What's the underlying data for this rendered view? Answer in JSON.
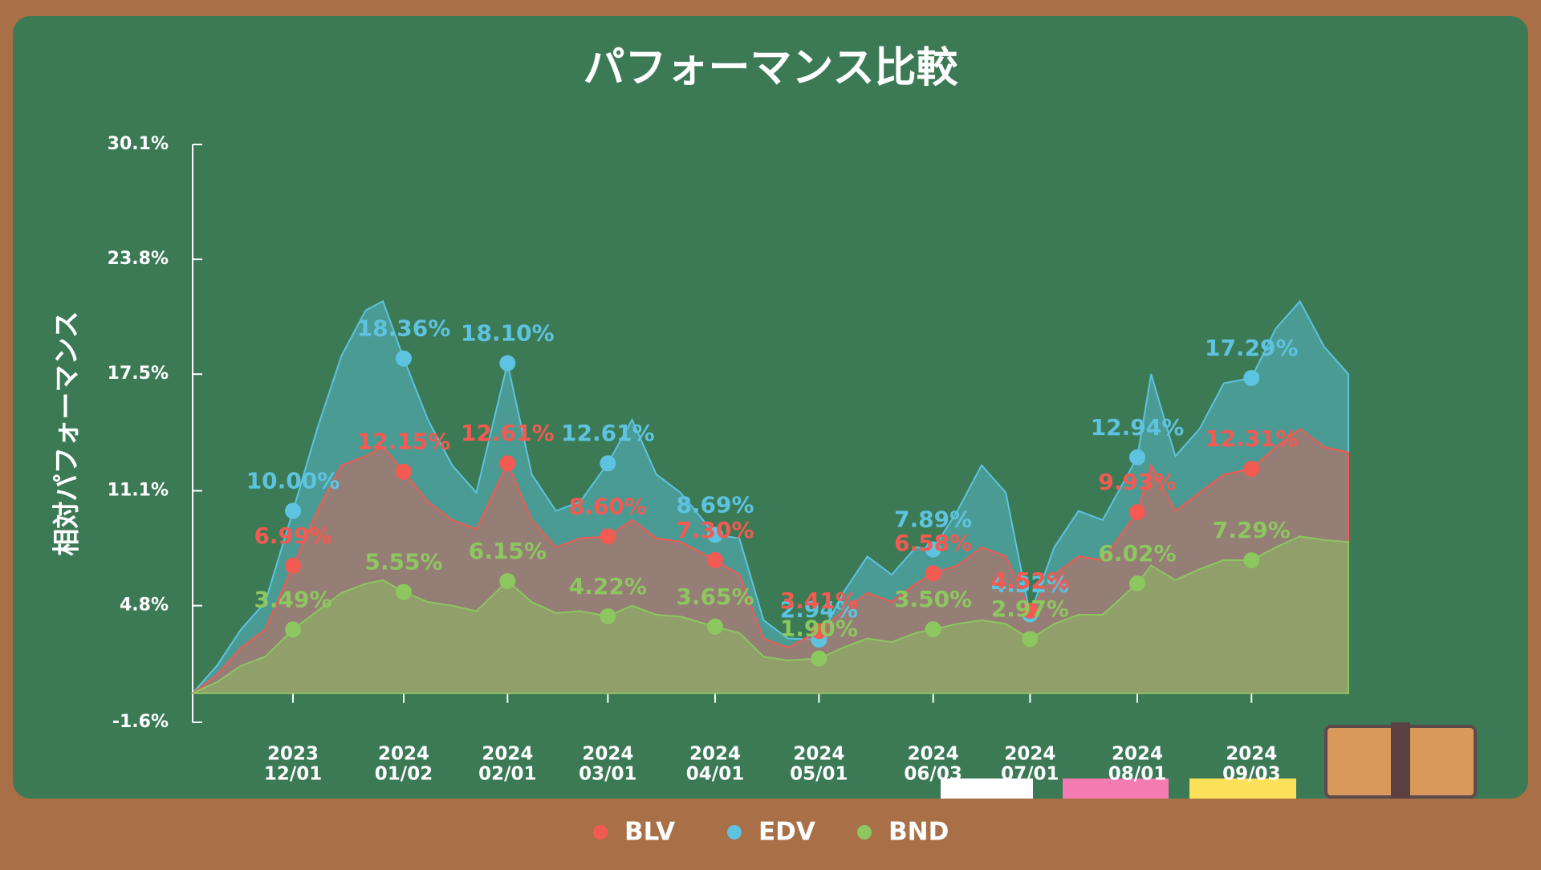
{
  "chart_data": {
    "type": "area",
    "title": "パフォーマンス比較",
    "y_label": "相対パフォーマンス",
    "x": [
      "2023-11-02",
      "2023-11-09",
      "2023-11-16",
      "2023-11-23",
      "2023-12-01",
      "2023-12-08",
      "2023-12-15",
      "2023-12-22",
      "2023-12-27",
      "2024-01-02",
      "2024-01-09",
      "2024-01-16",
      "2024-01-23",
      "2024-02-01",
      "2024-02-08",
      "2024-02-15",
      "2024-02-22",
      "2024-03-01",
      "2024-03-08",
      "2024-03-15",
      "2024-03-22",
      "2024-04-01",
      "2024-04-08",
      "2024-04-15",
      "2024-04-22",
      "2024-05-01",
      "2024-05-08",
      "2024-05-15",
      "2024-05-22",
      "2024-05-29",
      "2024-06-03",
      "2024-06-10",
      "2024-06-17",
      "2024-06-24",
      "2024-07-01",
      "2024-07-08",
      "2024-07-15",
      "2024-07-22",
      "2024-08-01",
      "2024-08-05",
      "2024-08-12",
      "2024-08-19",
      "2024-08-26",
      "2024-09-03",
      "2024-09-10",
      "2024-09-17",
      "2024-09-24",
      "2024-10-01"
    ],
    "series": [
      {
        "name": "BLV",
        "color": "#f25a52",
        "values": [
          0,
          1.0,
          2.5,
          3.5,
          6.99,
          10.0,
          12.5,
          13.0,
          13.5,
          12.15,
          10.5,
          9.5,
          9.0,
          12.61,
          9.5,
          8.0,
          8.5,
          8.6,
          9.5,
          8.5,
          8.3,
          7.3,
          6.5,
          3.0,
          2.5,
          3.41,
          4.5,
          5.5,
          5.0,
          6.0,
          6.58,
          7.0,
          8.0,
          7.5,
          4.52,
          6.5,
          7.5,
          7.3,
          9.93,
          12.5,
          10.0,
          11.0,
          12.0,
          12.31,
          13.5,
          14.5,
          13.5,
          13.2
        ],
        "value_labels": [
          null,
          null,
          null,
          null,
          "6.99%",
          null,
          null,
          null,
          null,
          "12.15%",
          null,
          null,
          null,
          "12.61%",
          null,
          null,
          null,
          "8.60%",
          null,
          null,
          null,
          "7.30%",
          null,
          null,
          null,
          "3.41%",
          null,
          null,
          null,
          null,
          "6.58%",
          null,
          null,
          null,
          "4.52%",
          null,
          null,
          null,
          "9.93%",
          null,
          null,
          null,
          null,
          "12.31%",
          null,
          null,
          null,
          null
        ]
      },
      {
        "name": "EDV",
        "color": "#5ec3e0",
        "values": [
          0,
          1.5,
          3.5,
          5.0,
          10.0,
          14.5,
          18.5,
          21.0,
          21.5,
          18.36,
          15.0,
          12.5,
          11.0,
          18.1,
          12.0,
          10.0,
          10.5,
          12.61,
          15.0,
          12.0,
          11.0,
          8.69,
          8.5,
          4.0,
          3.0,
          2.94,
          5.5,
          7.5,
          6.5,
          8.0,
          7.89,
          10.0,
          12.5,
          11.0,
          4.32,
          8.0,
          10.0,
          9.5,
          12.94,
          17.5,
          13.0,
          14.5,
          17.0,
          17.29,
          20.0,
          21.5,
          19.0,
          17.5
        ],
        "value_labels": [
          null,
          null,
          null,
          null,
          "10.00%",
          null,
          null,
          null,
          null,
          "18.36%",
          null,
          null,
          null,
          "18.10%",
          null,
          null,
          null,
          "12.61%",
          null,
          null,
          null,
          "8.69%",
          null,
          null,
          null,
          "2.94%",
          null,
          null,
          null,
          null,
          "7.89%",
          null,
          null,
          null,
          "4.32%",
          null,
          null,
          null,
          "12.94%",
          null,
          null,
          null,
          null,
          "17.29%",
          null,
          null,
          null,
          null
        ]
      },
      {
        "name": "BND",
        "color": "#8cc760",
        "values": [
          0,
          0.6,
          1.5,
          2.0,
          3.49,
          4.5,
          5.5,
          6.0,
          6.2,
          5.55,
          5.0,
          4.8,
          4.5,
          6.15,
          5.0,
          4.4,
          4.5,
          4.22,
          4.8,
          4.3,
          4.2,
          3.65,
          3.3,
          2.0,
          1.8,
          1.9,
          2.5,
          3.0,
          2.8,
          3.3,
          3.5,
          3.8,
          4.0,
          3.8,
          2.97,
          3.8,
          4.3,
          4.3,
          6.02,
          7.0,
          6.2,
          6.8,
          7.3,
          7.29,
          8.0,
          8.6,
          8.4,
          8.3
        ],
        "value_labels": [
          null,
          null,
          null,
          null,
          "3.49%",
          null,
          null,
          null,
          null,
          "5.55%",
          null,
          null,
          null,
          "6.15%",
          null,
          null,
          null,
          "4.22%",
          null,
          null,
          null,
          "3.65%",
          null,
          null,
          null,
          "1.90%",
          null,
          null,
          null,
          null,
          "3.50%",
          null,
          null,
          null,
          "2.97%",
          null,
          null,
          null,
          "6.02%",
          null,
          null,
          null,
          null,
          "7.29%",
          null,
          null,
          null,
          null
        ]
      }
    ],
    "xlim": [
      "2023-11-02",
      "2024-10-01"
    ],
    "xticks": [
      {
        "value": "2023-12-01",
        "label": [
          "2023",
          "12/01"
        ]
      },
      {
        "value": "2024-01-02",
        "label": [
          "2024",
          "01/02"
        ]
      },
      {
        "value": "2024-02-01",
        "label": [
          "2024",
          "02/01"
        ]
      },
      {
        "value": "2024-03-01",
        "label": [
          "2024",
          "03/01"
        ]
      },
      {
        "value": "2024-04-01",
        "label": [
          "2024",
          "04/01"
        ]
      },
      {
        "value": "2024-05-01",
        "label": [
          "2024",
          "05/01"
        ]
      },
      {
        "value": "2024-06-03",
        "label": [
          "2024",
          "06/03"
        ]
      },
      {
        "value": "2024-07-01",
        "label": [
          "2024",
          "07/01"
        ]
      },
      {
        "value": "2024-08-01",
        "label": [
          "2024",
          "08/01"
        ]
      },
      {
        "value": "2024-09-03",
        "label": [
          "2024",
          "09/03"
        ]
      }
    ],
    "ylim": [
      -1.6,
      30.1
    ],
    "yticks": [
      {
        "value": -1.6,
        "label": "-1.6%"
      },
      {
        "value": 4.8,
        "label": "4.8%"
      },
      {
        "value": 11.1,
        "label": "11.1%"
      },
      {
        "value": 17.5,
        "label": "17.5%"
      },
      {
        "value": 23.8,
        "label": "23.8%"
      },
      {
        "value": 30.1,
        "label": "30.1%"
      }
    ]
  }
}
